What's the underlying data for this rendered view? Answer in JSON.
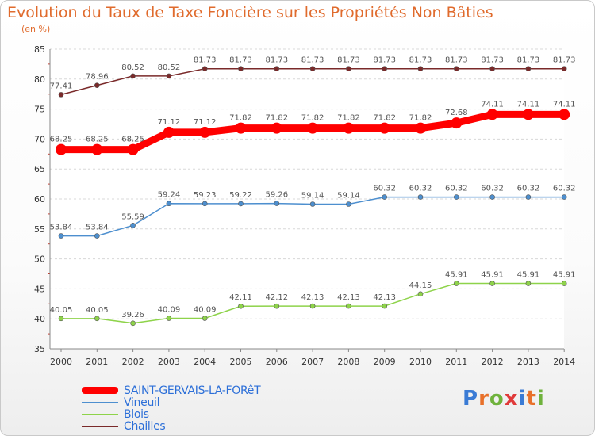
{
  "header": {
    "title": "Evolution du Taux de Taxe Foncière sur les Propriétés Non Bâties",
    "unit": "(en %)"
  },
  "logo": {
    "text": "Proxiti",
    "letter_colors": [
      "#3a7bd5",
      "#e8702a",
      "#6fb23c",
      "#e03a3a",
      "#3a7bd5",
      "#e8702a",
      "#6fb23c"
    ]
  },
  "chart_data": {
    "type": "line",
    "title": "Evolution du Taux de Taxe Foncière sur les Propriétés Non Bâties",
    "ylabel": "(en %)",
    "xlabel": "",
    "x": [
      "2000",
      "2001",
      "2002",
      "2003",
      "2004",
      "2005",
      "2006",
      "2007",
      "2008",
      "2009",
      "2010",
      "2011",
      "2012",
      "2013",
      "2014"
    ],
    "ylim": [
      35,
      85
    ],
    "yticks": [
      35,
      40,
      45,
      50,
      55,
      60,
      65,
      70,
      75,
      80,
      85
    ],
    "grid": "horizontal",
    "legend_position": "bottom-left",
    "series": [
      {
        "name": "SAINT-GERVAIS-LA-FORêT",
        "color": "#ff0000",
        "emphasis": true,
        "values": [
          68.25,
          68.25,
          68.25,
          71.12,
          71.12,
          71.82,
          71.82,
          71.82,
          71.82,
          71.82,
          71.82,
          72.68,
          74.11,
          74.11,
          74.11
        ],
        "labels": [
          "68.25",
          "68.25",
          "68.25",
          "71.12",
          "71.12",
          "71.82",
          "71.82",
          "71.82",
          "71.82",
          "71.82",
          "71.82",
          "72.68",
          "74.11",
          "74.11",
          "74.11"
        ]
      },
      {
        "name": "Vineuil",
        "color": "#4d8fcf",
        "emphasis": false,
        "values": [
          53.84,
          53.84,
          55.59,
          59.24,
          59.23,
          59.22,
          59.26,
          59.14,
          59.14,
          60.32,
          60.32,
          60.32,
          60.32,
          60.32,
          60.32
        ],
        "labels": [
          "53.84",
          "53.84",
          "55.59",
          "59.24",
          "59.23",
          "59.22",
          "59.26",
          "59.14",
          "59.14",
          "60.32",
          "60.32",
          "60.32",
          "60.32",
          "60.32",
          "60.32"
        ]
      },
      {
        "name": "Blois",
        "color": "#8ed34a",
        "emphasis": false,
        "values": [
          40.05,
          40.05,
          39.26,
          40.09,
          40.09,
          42.11,
          42.12,
          42.13,
          42.13,
          42.13,
          44.15,
          45.91,
          45.91,
          45.91,
          45.91
        ],
        "labels": [
          "40.05",
          "40.05",
          "39.26",
          "40.09",
          "40.09",
          "42.11",
          "42.12",
          "42.13",
          "42.13",
          "42.13",
          "44.15",
          "45.91",
          "45.91",
          "45.91",
          "45.91"
        ]
      },
      {
        "name": "Chailles",
        "color": "#7a2a2a",
        "emphasis": false,
        "values": [
          77.41,
          78.96,
          80.52,
          80.52,
          81.73,
          81.73,
          81.73,
          81.73,
          81.73,
          81.73,
          81.73,
          81.73,
          81.73,
          81.73,
          81.73
        ],
        "labels": [
          "77.41",
          "78.96",
          "80.52",
          "80.52",
          "81.73",
          "81.73",
          "81.73",
          "81.73",
          "81.73",
          "81.73",
          "81.73",
          "81.73",
          "81.73",
          "81.73",
          "81.73"
        ]
      }
    ]
  }
}
